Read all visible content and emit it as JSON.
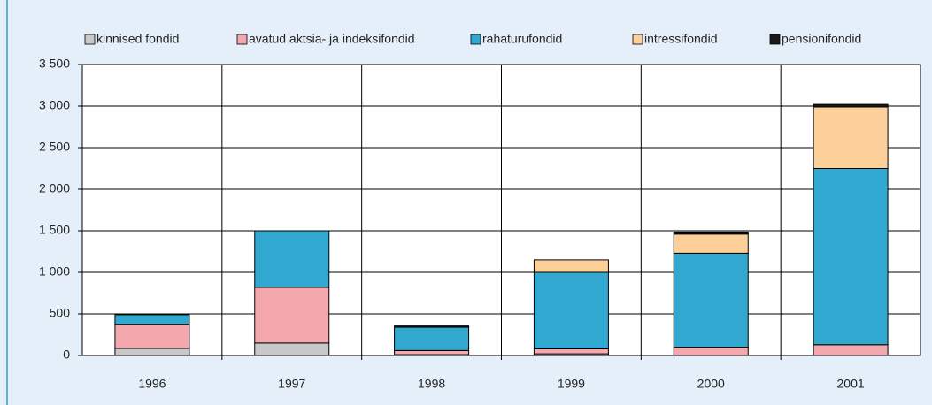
{
  "chart_data": {
    "type": "stacked_bar",
    "categories": [
      "1996",
      "1997",
      "1998",
      "1999",
      "2000",
      "2001"
    ],
    "series": [
      {
        "name": "kinnised fondid",
        "color": "#c8c8c8",
        "values": [
          85,
          150,
          10,
          20,
          0,
          0
        ]
      },
      {
        "name": "avatud aktsia- ja indeksifondid",
        "color": "#f4a7ac",
        "values": [
          290,
          670,
          50,
          60,
          100,
          130
        ]
      },
      {
        "name": "rahaturufondid",
        "color": "#31a8cf",
        "values": [
          115,
          680,
          280,
          920,
          1130,
          2120
        ]
      },
      {
        "name": "intressifondid",
        "color": "#fdd09a",
        "values": [
          0,
          0,
          0,
          150,
          230,
          740
        ]
      },
      {
        "name": "pensionifondid",
        "color": "#1a1a1a",
        "values": [
          0,
          0,
          15,
          0,
          25,
          30
        ]
      }
    ],
    "ylim": [
      0,
      3500
    ],
    "yticks": [
      0,
      500,
      {
        "value": 1000,
        "label": "1 000"
      },
      {
        "value": 1500,
        "label": "1 500"
      },
      {
        "value": 2000,
        "label": "2 000"
      },
      {
        "value": 2500,
        "label": "2 500"
      },
      {
        "value": 3000,
        "label": "3 000"
      },
      {
        "value": 3500,
        "label": "3 500"
      }
    ],
    "grid": true
  }
}
